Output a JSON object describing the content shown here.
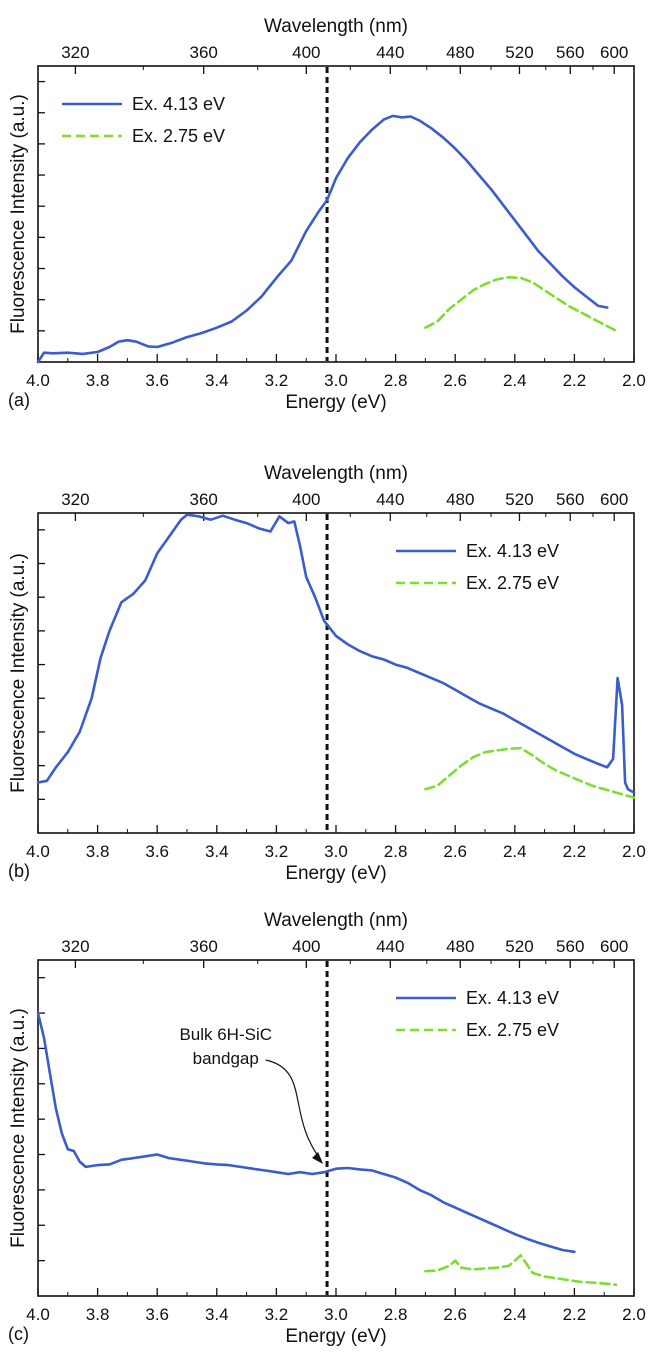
{
  "chart_data": [
    {
      "type": "line",
      "panel_label": "(a)",
      "xlabel": "Energy (eV)",
      "ylabel": "Fluorescence Intensity (a.u.)",
      "top_xlabel": "Wavelength (nm)",
      "xlim": [
        4.0,
        2.0
      ],
      "x_reversed": true,
      "x_ticks": [
        "4.0",
        "3.8",
        "3.6",
        "3.4",
        "3.2",
        "3.0",
        "2.8",
        "2.6",
        "2.4",
        "2.2",
        "2.0"
      ],
      "top_ticks": [
        "320",
        "360",
        "400",
        "440",
        "480",
        "520",
        "560",
        "600"
      ],
      "ylim": [
        0,
        9.5
      ],
      "y_tick_count": 9,
      "grid": false,
      "legend_position": "top-left",
      "vline": {
        "x": 3.03,
        "style": "dashed"
      },
      "series": [
        {
          "name": "Ex. 4.13 eV",
          "color": "#3a5ccc",
          "style": "solid",
          "x": [
            4.0,
            3.98,
            3.95,
            3.9,
            3.85,
            3.8,
            3.76,
            3.73,
            3.7,
            3.67,
            3.63,
            3.6,
            3.55,
            3.5,
            3.45,
            3.4,
            3.35,
            3.3,
            3.25,
            3.2,
            3.15,
            3.1,
            3.06,
            3.03,
            3.0,
            2.96,
            2.92,
            2.88,
            2.84,
            2.81,
            2.78,
            2.75,
            2.72,
            2.68,
            2.64,
            2.6,
            2.56,
            2.52,
            2.48,
            2.44,
            2.4,
            2.36,
            2.32,
            2.28,
            2.24,
            2.2,
            2.16,
            2.12,
            2.09
          ],
          "values": [
            0.0,
            0.3,
            0.28,
            0.3,
            0.26,
            0.32,
            0.48,
            0.65,
            0.7,
            0.65,
            0.5,
            0.48,
            0.62,
            0.8,
            0.93,
            1.1,
            1.3,
            1.65,
            2.1,
            2.7,
            3.25,
            4.2,
            4.8,
            5.2,
            5.9,
            6.55,
            7.05,
            7.45,
            7.78,
            7.9,
            7.85,
            7.88,
            7.75,
            7.5,
            7.2,
            6.85,
            6.45,
            6.0,
            5.55,
            5.05,
            4.55,
            4.05,
            3.55,
            3.15,
            2.75,
            2.4,
            2.1,
            1.8,
            1.75
          ]
        },
        {
          "name": "Ex. 2.75 eV",
          "color": "#7edc32",
          "style": "dashed",
          "x": [
            2.7,
            2.66,
            2.62,
            2.58,
            2.54,
            2.5,
            2.46,
            2.42,
            2.38,
            2.34,
            2.3,
            2.26,
            2.22,
            2.18,
            2.14,
            2.1,
            2.06
          ],
          "values": [
            1.1,
            1.3,
            1.7,
            2.0,
            2.3,
            2.5,
            2.65,
            2.72,
            2.7,
            2.55,
            2.3,
            2.05,
            1.8,
            1.6,
            1.4,
            1.2,
            1.0
          ]
        }
      ]
    },
    {
      "type": "line",
      "panel_label": "(b)",
      "xlabel": "Energy (eV)",
      "ylabel": "Fluorescence Intensity (a.u.)",
      "top_xlabel": "Wavelength (nm)",
      "xlim": [
        4.0,
        2.0
      ],
      "x_reversed": true,
      "x_ticks": [
        "4.0",
        "3.8",
        "3.6",
        "3.4",
        "3.2",
        "3.0",
        "2.8",
        "2.6",
        "2.4",
        "2.2",
        "2.0"
      ],
      "top_ticks": [
        "320",
        "360",
        "400",
        "440",
        "480",
        "520",
        "560",
        "600"
      ],
      "ylim": [
        0,
        9.5
      ],
      "y_tick_count": 9,
      "grid": false,
      "legend_position": "top-right",
      "vline": {
        "x": 3.03,
        "style": "dashed"
      },
      "series": [
        {
          "name": "Ex. 4.13 eV",
          "color": "#3a5ccc",
          "style": "solid",
          "x": [
            4.0,
            3.97,
            3.94,
            3.9,
            3.86,
            3.82,
            3.79,
            3.76,
            3.72,
            3.68,
            3.64,
            3.6,
            3.56,
            3.52,
            3.5,
            3.46,
            3.42,
            3.38,
            3.34,
            3.3,
            3.26,
            3.22,
            3.19,
            3.16,
            3.14,
            3.12,
            3.1,
            3.07,
            3.04,
            3.0,
            2.96,
            2.92,
            2.88,
            2.84,
            2.8,
            2.76,
            2.72,
            2.68,
            2.64,
            2.6,
            2.56,
            2.52,
            2.48,
            2.44,
            2.4,
            2.36,
            2.32,
            2.28,
            2.24,
            2.2,
            2.16,
            2.12,
            2.09,
            2.07,
            2.055,
            2.04,
            2.03,
            2.02,
            2.0
          ],
          "values": [
            1.5,
            1.55,
            1.95,
            2.4,
            3.0,
            4.0,
            5.2,
            6.0,
            6.85,
            7.1,
            7.5,
            8.3,
            8.8,
            9.3,
            9.45,
            9.4,
            9.3,
            9.42,
            9.3,
            9.2,
            9.05,
            8.95,
            9.4,
            9.2,
            9.25,
            8.5,
            7.6,
            7.0,
            6.3,
            5.85,
            5.6,
            5.4,
            5.25,
            5.15,
            5.0,
            4.9,
            4.75,
            4.6,
            4.45,
            4.25,
            4.05,
            3.85,
            3.7,
            3.55,
            3.35,
            3.15,
            2.95,
            2.75,
            2.55,
            2.35,
            2.2,
            2.05,
            1.95,
            2.2,
            4.6,
            3.8,
            1.5,
            1.3,
            1.2
          ]
        },
        {
          "name": "Ex. 2.75 eV",
          "color": "#7edc32",
          "style": "dashed",
          "x": [
            2.7,
            2.66,
            2.62,
            2.58,
            2.54,
            2.5,
            2.46,
            2.42,
            2.38,
            2.34,
            2.3,
            2.26,
            2.22,
            2.18,
            2.14,
            2.1,
            2.06,
            2.02,
            2.0
          ],
          "values": [
            1.3,
            1.4,
            1.7,
            2.0,
            2.25,
            2.4,
            2.45,
            2.5,
            2.52,
            2.3,
            2.05,
            1.85,
            1.7,
            1.55,
            1.4,
            1.3,
            1.2,
            1.1,
            1.05
          ]
        }
      ]
    },
    {
      "type": "line",
      "panel_label": "(c)",
      "xlabel": "Energy (eV)",
      "ylabel": "Fluorescence Intensity (a.u.)",
      "top_xlabel": "Wavelength (nm)",
      "xlim": [
        4.0,
        2.0
      ],
      "x_reversed": true,
      "x_ticks": [
        "4.0",
        "3.8",
        "3.6",
        "3.4",
        "3.2",
        "3.0",
        "2.8",
        "2.6",
        "2.4",
        "2.2",
        "2.0"
      ],
      "top_ticks": [
        "320",
        "360",
        "400",
        "440",
        "480",
        "520",
        "560",
        "600"
      ],
      "ylim": [
        0,
        9.5
      ],
      "y_tick_count": 9,
      "grid": false,
      "legend_position": "top-right",
      "vline": {
        "x": 3.03,
        "style": "dashed"
      },
      "annotation": {
        "lines": [
          "Bulk 6H-SiC",
          "bandgap"
        ],
        "x": 3.37,
        "arrow_to": 3.03
      },
      "series": [
        {
          "name": "Ex. 4.13 eV",
          "color": "#3a5ccc",
          "style": "solid",
          "x": [
            4.0,
            3.98,
            3.96,
            3.94,
            3.92,
            3.9,
            3.88,
            3.86,
            3.84,
            3.8,
            3.76,
            3.72,
            3.68,
            3.64,
            3.6,
            3.56,
            3.52,
            3.48,
            3.44,
            3.4,
            3.36,
            3.32,
            3.28,
            3.24,
            3.2,
            3.16,
            3.12,
            3.08,
            3.04,
            3.0,
            2.96,
            2.92,
            2.88,
            2.84,
            2.8,
            2.76,
            2.72,
            2.68,
            2.64,
            2.6,
            2.56,
            2.52,
            2.48,
            2.44,
            2.4,
            2.36,
            2.32,
            2.28,
            2.24,
            2.2
          ],
          "values": [
            8.0,
            7.3,
            6.3,
            5.3,
            4.6,
            4.15,
            4.1,
            3.8,
            3.65,
            3.7,
            3.72,
            3.85,
            3.9,
            3.95,
            4.0,
            3.9,
            3.85,
            3.8,
            3.75,
            3.72,
            3.7,
            3.65,
            3.6,
            3.55,
            3.5,
            3.45,
            3.5,
            3.45,
            3.5,
            3.6,
            3.62,
            3.58,
            3.55,
            3.45,
            3.35,
            3.2,
            3.0,
            2.85,
            2.65,
            2.5,
            2.35,
            2.2,
            2.05,
            1.9,
            1.75,
            1.62,
            1.5,
            1.4,
            1.3,
            1.25
          ]
        },
        {
          "name": "Ex. 2.75 eV",
          "color": "#7edc32",
          "style": "dashed",
          "x": [
            2.7,
            2.66,
            2.62,
            2.6,
            2.58,
            2.54,
            2.5,
            2.46,
            2.42,
            2.4,
            2.38,
            2.36,
            2.34,
            2.3,
            2.26,
            2.22,
            2.18,
            2.14,
            2.1,
            2.06
          ],
          "values": [
            0.7,
            0.72,
            0.85,
            1.0,
            0.8,
            0.75,
            0.78,
            0.8,
            0.85,
            1.0,
            1.15,
            0.9,
            0.65,
            0.55,
            0.5,
            0.45,
            0.4,
            0.38,
            0.35,
            0.32
          ]
        }
      ]
    }
  ]
}
